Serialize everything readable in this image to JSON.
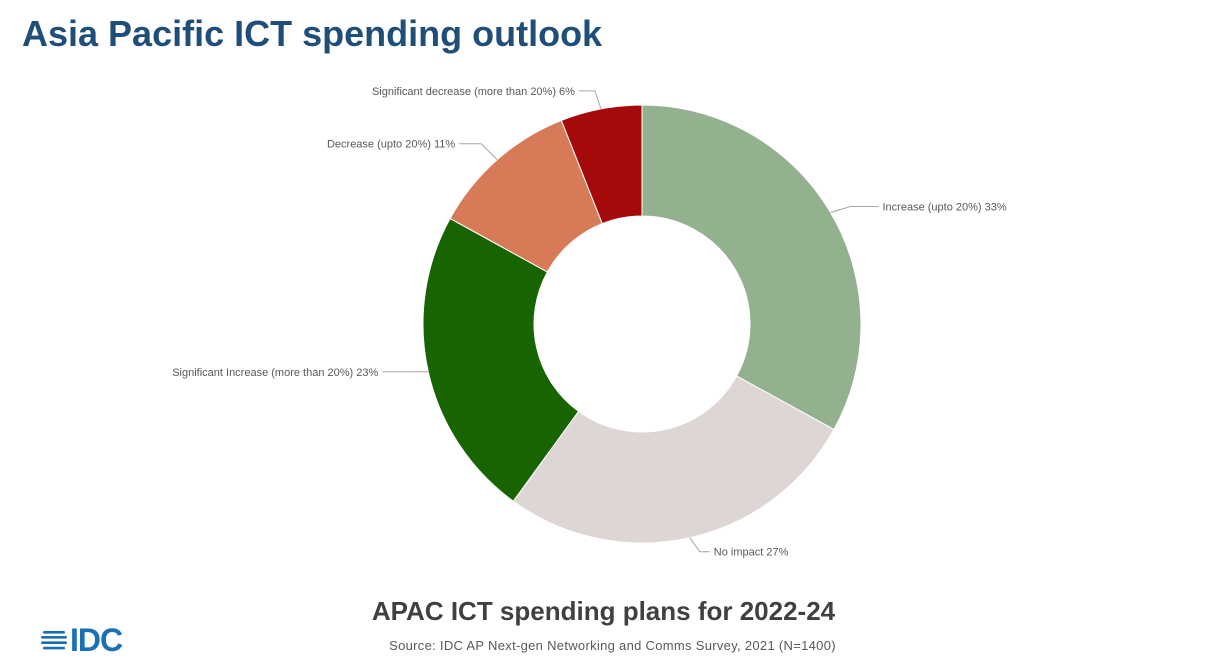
{
  "slide": {
    "title": "Asia Pacific ICT spending outlook",
    "logo_text": "IDC"
  },
  "chart_data": {
    "type": "pie",
    "title": "APAC ICT spending plans for 2022-24",
    "source": "Source: IDC AP Next-gen Networking and Comms Survey, 2021 (N=1400)",
    "categories": [
      "Increase (upto 20%)",
      "No impact",
      "Significant Increase (more than 20%)",
      "Decrease (upto 20%)",
      "Significant decrease (more than 20%)"
    ],
    "values": [
      33,
      27,
      23,
      11,
      6
    ],
    "labels": [
      "Increase (upto 20%) 33%",
      "No impact 27%",
      "Significant Increase (more than 20%) 23%",
      "Decrease (upto 20%) 11%",
      "Significant decrease (more than 20%) 6%"
    ],
    "colors": [
      "#93b18f",
      "#ded6d4",
      "#186400",
      "#d67a58",
      "#a50a0a"
    ],
    "donut": true
  }
}
